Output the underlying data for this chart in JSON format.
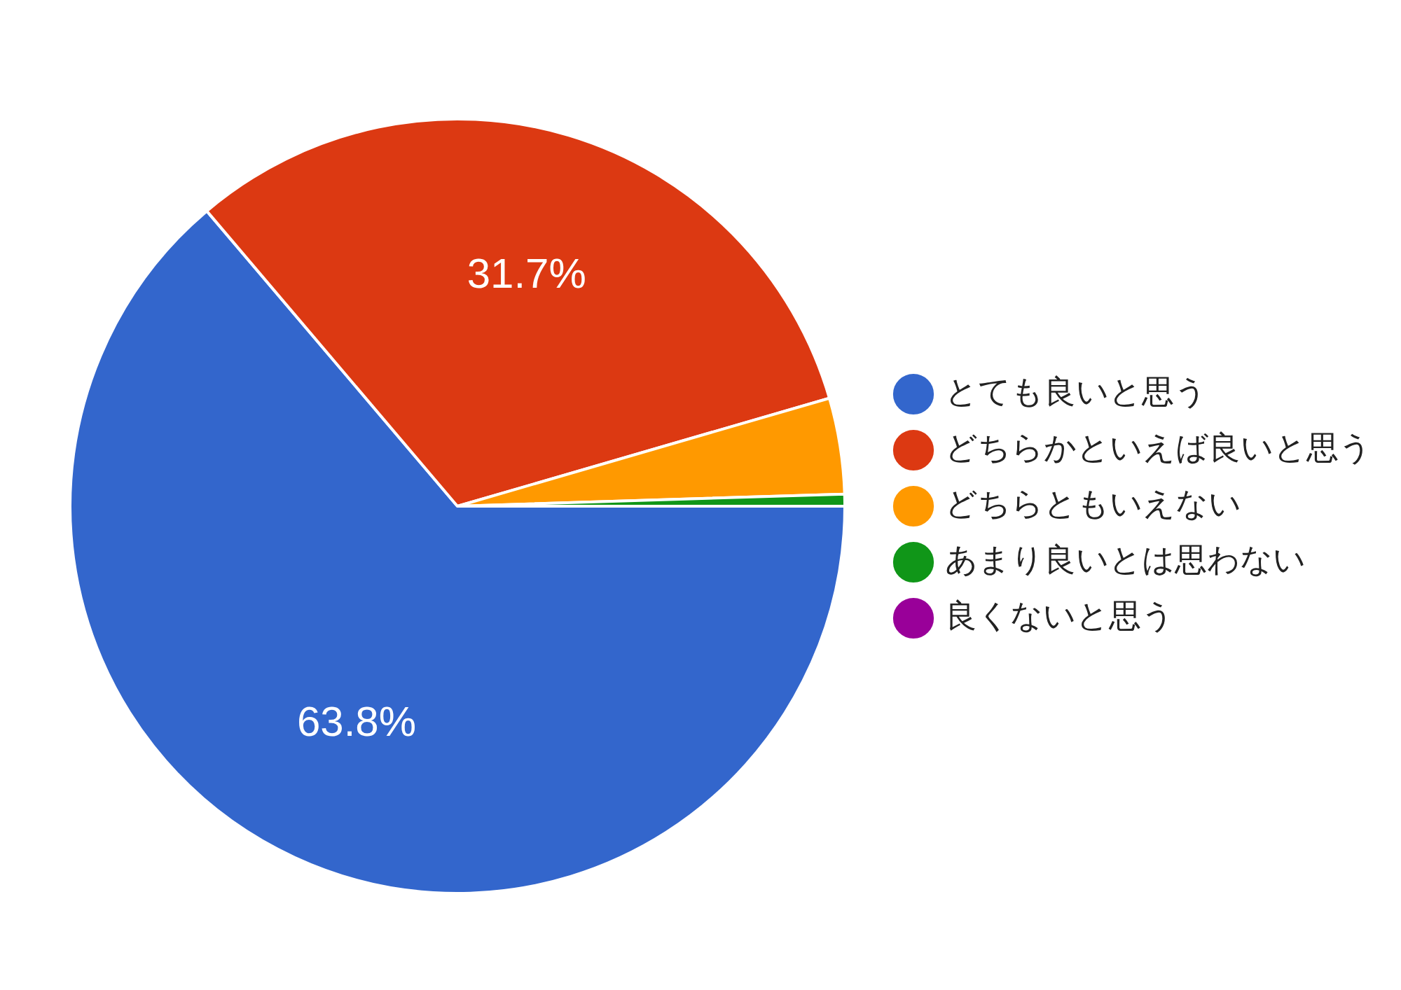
{
  "chart_data": {
    "type": "pie",
    "categories": [
      "とても良いと思う",
      "どちらかといえば良いと思う",
      "どちらともいえない",
      "あまり良いとは思わない",
      "良くないと思う"
    ],
    "values": [
      63.8,
      31.7,
      4.0,
      0.5,
      0
    ],
    "colors": [
      "#3366cc",
      "#dc3912",
      "#ff9900",
      "#109618",
      "#990099"
    ],
    "value_labels": [
      "63.8%",
      "31.7%",
      null,
      null,
      null
    ],
    "legend": "right"
  }
}
